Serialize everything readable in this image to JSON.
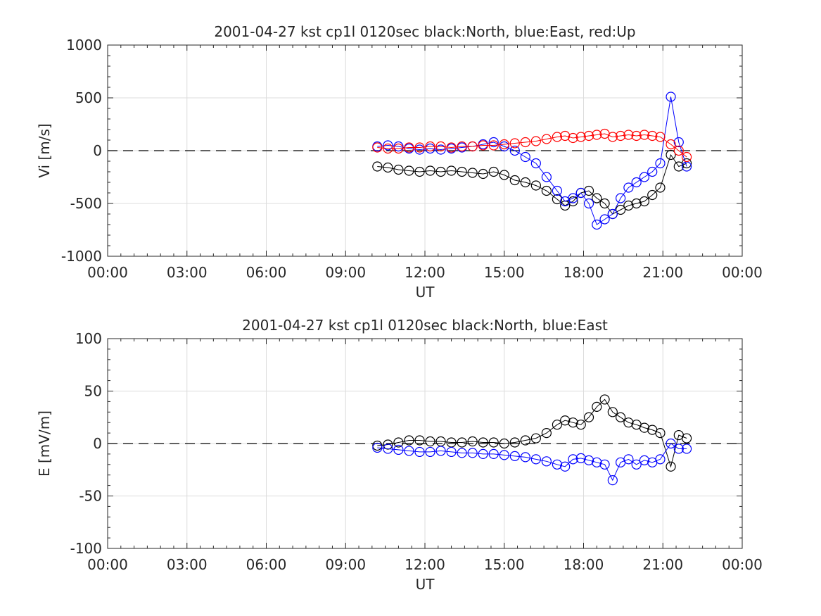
{
  "chart_data": [
    {
      "type": "scatter",
      "title": "2001-04-27 kst cp1l 0120sec black:North, blue:East, red:Up",
      "xlabel": "UT",
      "ylabel": "Vi [m/s]",
      "xlim_hours": [
        0,
        24
      ],
      "ylim": [
        -1000,
        1000
      ],
      "x_ticks": [
        "00:00",
        "03:00",
        "06:00",
        "09:00",
        "12:00",
        "15:00",
        "18:00",
        "21:00",
        "00:00"
      ],
      "y_ticks": [
        "-1000",
        "-500",
        "0",
        "500",
        "1000"
      ],
      "grid": true,
      "zero_line": "dashed",
      "series": [
        {
          "color": "#000000",
          "x_hours": [
            10.2,
            10.6,
            11.0,
            11.4,
            11.8,
            12.2,
            12.6,
            13.0,
            13.4,
            13.8,
            14.2,
            14.6,
            15.0,
            15.4,
            15.8,
            16.2,
            16.6,
            17.0,
            17.3,
            17.6,
            17.9,
            18.2,
            18.5,
            18.8,
            19.1,
            19.4,
            19.7,
            20.0,
            20.3,
            20.6,
            20.9,
            21.3,
            21.6,
            21.9
          ],
          "values": [
            -150,
            -160,
            -180,
            -190,
            -200,
            -190,
            -200,
            -190,
            -200,
            -210,
            -220,
            -200,
            -230,
            -280,
            -300,
            -330,
            -380,
            -460,
            -520,
            -480,
            -400,
            -380,
            -450,
            -500,
            -600,
            -560,
            -520,
            -500,
            -480,
            -420,
            -350,
            -40,
            -150,
            -120
          ]
        },
        {
          "color": "#0000ff",
          "x_hours": [
            10.2,
            10.6,
            11.0,
            11.4,
            11.8,
            12.2,
            12.6,
            13.0,
            13.4,
            13.8,
            14.2,
            14.6,
            15.0,
            15.4,
            15.8,
            16.2,
            16.6,
            17.0,
            17.3,
            17.6,
            17.9,
            18.2,
            18.5,
            18.8,
            19.1,
            19.4,
            19.7,
            20.0,
            20.3,
            20.6,
            20.9,
            21.3,
            21.6,
            21.9
          ],
          "values": [
            40,
            50,
            40,
            20,
            10,
            20,
            10,
            20,
            30,
            40,
            60,
            80,
            40,
            0,
            -60,
            -120,
            -250,
            -380,
            -480,
            -450,
            -400,
            -500,
            -700,
            -650,
            -600,
            -450,
            -350,
            -300,
            -250,
            -200,
            -120,
            510,
            80,
            -150
          ]
        },
        {
          "color": "#ff0000",
          "x_hours": [
            10.2,
            10.6,
            11.0,
            11.4,
            11.8,
            12.2,
            12.6,
            13.0,
            13.4,
            13.8,
            14.2,
            14.6,
            15.0,
            15.4,
            15.8,
            16.2,
            16.6,
            17.0,
            17.3,
            17.6,
            17.9,
            18.2,
            18.5,
            18.8,
            19.1,
            19.4,
            19.7,
            20.0,
            20.3,
            20.6,
            20.9,
            21.3,
            21.6,
            21.9
          ],
          "values": [
            30,
            20,
            20,
            30,
            30,
            40,
            40,
            30,
            40,
            40,
            50,
            50,
            60,
            70,
            80,
            90,
            110,
            130,
            140,
            120,
            130,
            140,
            150,
            160,
            130,
            140,
            150,
            140,
            150,
            140,
            130,
            60,
            0,
            -60
          ]
        }
      ]
    },
    {
      "type": "scatter",
      "title": "2001-04-27 kst cp1l 0120sec black:North, blue:East",
      "xlabel": "UT",
      "ylabel": "E [mV/m]",
      "xlim_hours": [
        0,
        24
      ],
      "ylim": [
        -100,
        100
      ],
      "x_ticks": [
        "00:00",
        "03:00",
        "06:00",
        "09:00",
        "12:00",
        "15:00",
        "18:00",
        "21:00",
        "00:00"
      ],
      "y_ticks": [
        "-100",
        "-50",
        "0",
        "50",
        "100"
      ],
      "grid": true,
      "zero_line": "dashed",
      "series": [
        {
          "color": "#000000",
          "x_hours": [
            10.2,
            10.6,
            11.0,
            11.4,
            11.8,
            12.2,
            12.6,
            13.0,
            13.4,
            13.8,
            14.2,
            14.6,
            15.0,
            15.4,
            15.8,
            16.2,
            16.6,
            17.0,
            17.3,
            17.6,
            17.9,
            18.2,
            18.5,
            18.8,
            19.1,
            19.4,
            19.7,
            20.0,
            20.3,
            20.6,
            20.9,
            21.3,
            21.6,
            21.9
          ],
          "values": [
            -2,
            -1,
            1,
            3,
            3,
            2,
            2,
            1,
            1,
            2,
            1,
            1,
            0,
            1,
            3,
            5,
            10,
            18,
            22,
            20,
            18,
            25,
            35,
            42,
            30,
            25,
            20,
            18,
            15,
            13,
            10,
            -22,
            8,
            5
          ]
        },
        {
          "color": "#0000ff",
          "x_hours": [
            10.2,
            10.6,
            11.0,
            11.4,
            11.8,
            12.2,
            12.6,
            13.0,
            13.4,
            13.8,
            14.2,
            14.6,
            15.0,
            15.4,
            15.8,
            16.2,
            16.6,
            17.0,
            17.3,
            17.6,
            17.9,
            18.2,
            18.5,
            18.8,
            19.1,
            19.4,
            19.7,
            20.0,
            20.3,
            20.6,
            20.9,
            21.3,
            21.6,
            21.9
          ],
          "values": [
            -4,
            -5,
            -6,
            -7,
            -8,
            -8,
            -7,
            -8,
            -9,
            -9,
            -10,
            -10,
            -11,
            -12,
            -13,
            -15,
            -17,
            -20,
            -22,
            -15,
            -14,
            -16,
            -18,
            -20,
            -35,
            -18,
            -15,
            -20,
            -16,
            -18,
            -15,
            0,
            -5,
            -5
          ]
        }
      ]
    }
  ]
}
